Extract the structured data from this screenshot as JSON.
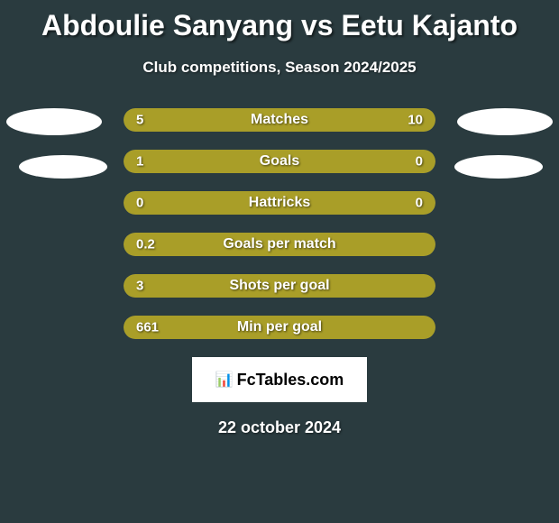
{
  "title": "Abdoulie Sanyang vs Eetu Kajanto",
  "subtitle": "Club competitions, Season 2024/2025",
  "date": "22 october 2024",
  "logo_text": "FcTables.com",
  "colors": {
    "background": "#2a3b3f",
    "bar_fill": "#a99e28",
    "bar_bg": "#495a5e",
    "text": "#ffffff",
    "ellipse": "#ffffff"
  },
  "stats": [
    {
      "label": "Matches",
      "left_value": "5",
      "right_value": "10",
      "left_pct": 33,
      "right_pct": 67,
      "mode": "split"
    },
    {
      "label": "Goals",
      "left_value": "1",
      "right_value": "0",
      "left_pct": 75,
      "right_pct": 25,
      "mode": "split-right-fill"
    },
    {
      "label": "Hattricks",
      "left_value": "0",
      "right_value": "0",
      "left_pct": 0,
      "right_pct": 0,
      "mode": "full"
    },
    {
      "label": "Goals per match",
      "left_value": "0.2",
      "right_value": "",
      "left_pct": 100,
      "right_pct": 0,
      "mode": "full"
    },
    {
      "label": "Shots per goal",
      "left_value": "3",
      "right_value": "",
      "left_pct": 100,
      "right_pct": 0,
      "mode": "full"
    },
    {
      "label": "Min per goal",
      "left_value": "661",
      "right_value": "",
      "left_pct": 100,
      "right_pct": 0,
      "mode": "full"
    }
  ]
}
